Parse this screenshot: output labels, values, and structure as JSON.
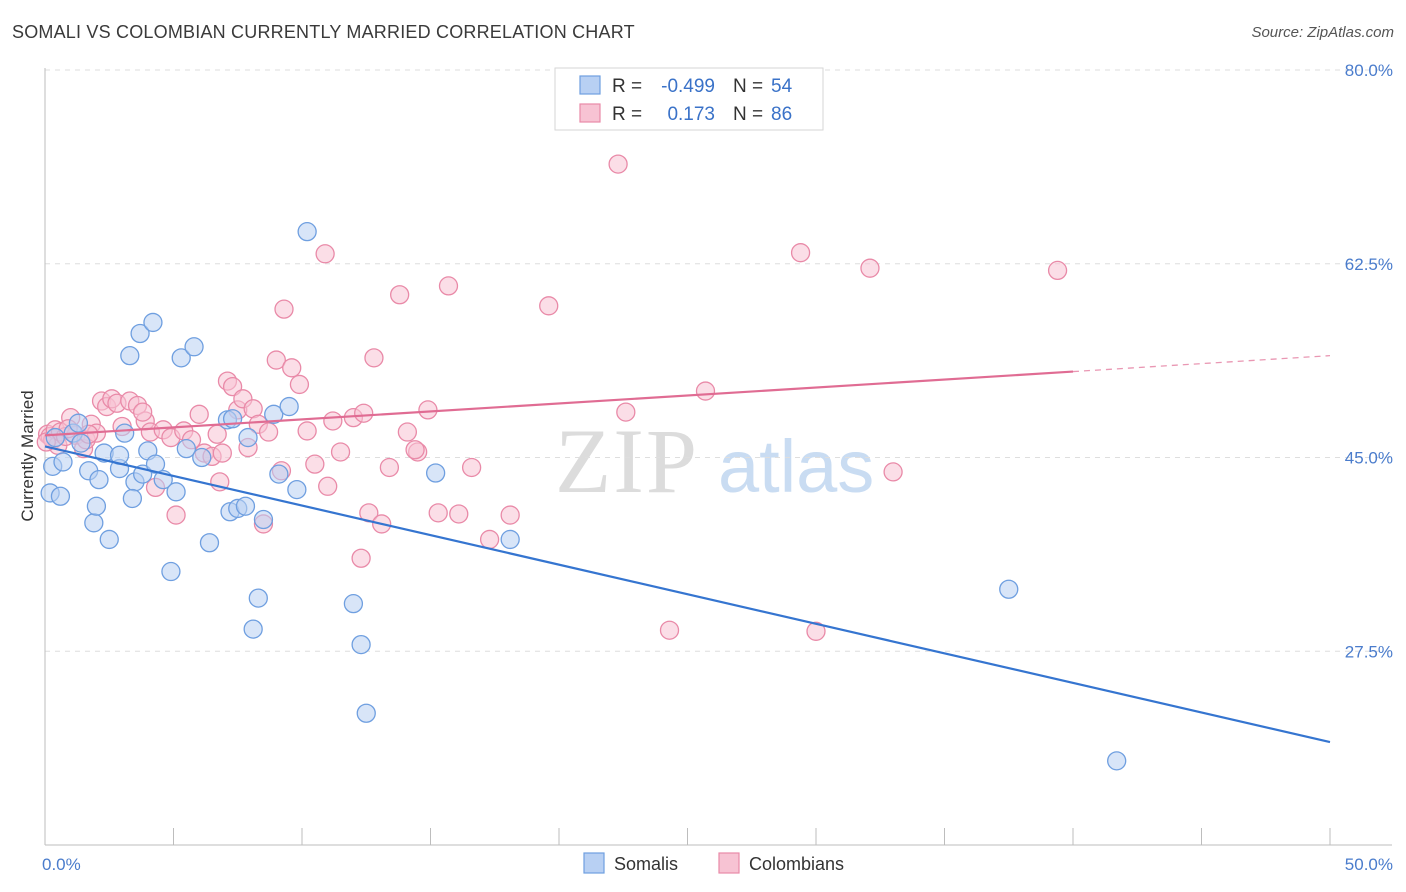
{
  "header": {
    "title": "SOMALI VS COLOMBIAN CURRENTLY MARRIED CORRELATION CHART",
    "source": "Source: ZipAtlas.com"
  },
  "watermark": {
    "zip": "ZIP",
    "atlas": "atlas"
  },
  "chart_data": {
    "type": "scatter",
    "xlabel": "",
    "ylabel": "Currently Married",
    "xlim": [
      0,
      50
    ],
    "ylim": [
      10,
      80
    ],
    "x_tick_labels": [
      "0.0%",
      "50.0%"
    ],
    "y_ticks": [
      27.5,
      45.0,
      62.5,
      80.0
    ],
    "y_tick_labels": [
      "27.5%",
      "45.0%",
      "62.5%",
      "80.0%"
    ],
    "grid": true,
    "legend": {
      "placement": "top-center",
      "entries": [
        {
          "series": "Somalis",
          "r_label": "R =",
          "r_value": "-0.499",
          "n_label": "N =",
          "n_value": "54"
        },
        {
          "series": "Colombians",
          "r_label": "R =",
          "r_value": "0.173",
          "n_label": "N =",
          "n_value": "86"
        }
      ]
    },
    "colors": {
      "somalis_fill": "#b8d0f3",
      "somalis_stroke": "#6f9fe0",
      "somalis_line": "#3575d0",
      "colombians_fill": "#f7c3d3",
      "colombians_stroke": "#e98aa8",
      "colombians_line": "#e06c93"
    },
    "series": [
      {
        "name": "Somalis",
        "trend": {
          "x0": 0,
          "y0": 46.0,
          "x1": 50,
          "y1": 19.3,
          "solid_to": 50
        },
        "points": [
          [
            0.2,
            41.8
          ],
          [
            0.3,
            44.2
          ],
          [
            0.6,
            41.5
          ],
          [
            0.7,
            44.6
          ],
          [
            1.1,
            47.2
          ],
          [
            1.3,
            48.1
          ],
          [
            1.4,
            46.3
          ],
          [
            1.7,
            43.8
          ],
          [
            1.9,
            39.1
          ],
          [
            2.0,
            40.6
          ],
          [
            2.3,
            45.4
          ],
          [
            2.5,
            37.6
          ],
          [
            2.9,
            44.0
          ],
          [
            2.9,
            45.2
          ],
          [
            3.1,
            47.2
          ],
          [
            3.3,
            54.2
          ],
          [
            3.5,
            42.8
          ],
          [
            3.7,
            56.2
          ],
          [
            3.8,
            43.5
          ],
          [
            4.0,
            45.6
          ],
          [
            4.2,
            57.2
          ],
          [
            4.3,
            44.4
          ],
          [
            4.6,
            43.0
          ],
          [
            4.9,
            34.7
          ],
          [
            5.1,
            41.9
          ],
          [
            5.3,
            54.0
          ],
          [
            5.5,
            45.8
          ],
          [
            5.8,
            55.0
          ],
          [
            6.1,
            45.0
          ],
          [
            6.4,
            37.3
          ],
          [
            7.1,
            48.4
          ],
          [
            7.2,
            40.1
          ],
          [
            7.3,
            48.5
          ],
          [
            7.5,
            40.4
          ],
          [
            7.8,
            40.6
          ],
          [
            7.9,
            46.8
          ],
          [
            8.1,
            29.5
          ],
          [
            8.3,
            32.3
          ],
          [
            8.5,
            39.4
          ],
          [
            8.9,
            48.9
          ],
          [
            9.1,
            43.5
          ],
          [
            9.5,
            49.6
          ],
          [
            9.8,
            42.1
          ],
          [
            10.2,
            65.4
          ],
          [
            12.0,
            31.8
          ],
          [
            12.3,
            28.1
          ],
          [
            12.5,
            21.9
          ],
          [
            15.2,
            43.6
          ],
          [
            18.1,
            37.6
          ],
          [
            37.5,
            33.1
          ],
          [
            41.7,
            17.6
          ],
          [
            0.4,
            46.8
          ],
          [
            2.1,
            43.0
          ],
          [
            3.4,
            41.3
          ]
        ]
      },
      {
        "name": "Colombians",
        "trend": {
          "x0": 0,
          "y0": 47.0,
          "x1": 50,
          "y1": 54.2,
          "solid_to": 40
        },
        "points": [
          [
            0.1,
            47.1
          ],
          [
            0.2,
            46.9
          ],
          [
            0.3,
            46.6
          ],
          [
            0.4,
            47.5
          ],
          [
            0.5,
            46.1
          ],
          [
            0.6,
            47.3
          ],
          [
            0.8,
            46.9
          ],
          [
            1.0,
            48.6
          ],
          [
            1.2,
            47.0
          ],
          [
            1.5,
            45.8
          ],
          [
            1.6,
            46.6
          ],
          [
            1.8,
            48.0
          ],
          [
            2.0,
            47.2
          ],
          [
            2.2,
            50.1
          ],
          [
            2.4,
            49.6
          ],
          [
            2.6,
            50.3
          ],
          [
            2.8,
            49.9
          ],
          [
            3.0,
            47.8
          ],
          [
            3.3,
            50.1
          ],
          [
            3.6,
            49.7
          ],
          [
            3.9,
            48.3
          ],
          [
            4.1,
            47.3
          ],
          [
            4.3,
            42.3
          ],
          [
            4.6,
            47.5
          ],
          [
            4.9,
            46.8
          ],
          [
            5.1,
            39.8
          ],
          [
            5.4,
            47.4
          ],
          [
            5.7,
            46.6
          ],
          [
            6.0,
            48.9
          ],
          [
            6.2,
            45.4
          ],
          [
            6.5,
            45.1
          ],
          [
            6.7,
            47.1
          ],
          [
            6.9,
            45.4
          ],
          [
            7.1,
            51.9
          ],
          [
            7.3,
            51.4
          ],
          [
            7.5,
            49.3
          ],
          [
            7.7,
            50.3
          ],
          [
            7.9,
            45.9
          ],
          [
            8.1,
            49.4
          ],
          [
            8.3,
            48.0
          ],
          [
            8.5,
            39.0
          ],
          [
            8.7,
            47.3
          ],
          [
            9.0,
            53.8
          ],
          [
            9.3,
            58.4
          ],
          [
            9.6,
            53.1
          ],
          [
            9.9,
            51.6
          ],
          [
            10.2,
            47.4
          ],
          [
            10.5,
            44.4
          ],
          [
            10.9,
            63.4
          ],
          [
            11.2,
            48.3
          ],
          [
            11.5,
            45.5
          ],
          [
            12.0,
            48.6
          ],
          [
            12.3,
            35.9
          ],
          [
            12.6,
            40.0
          ],
          [
            12.8,
            54.0
          ],
          [
            13.1,
            39.0
          ],
          [
            13.4,
            44.1
          ],
          [
            13.8,
            59.7
          ],
          [
            14.1,
            47.3
          ],
          [
            14.5,
            45.5
          ],
          [
            14.9,
            49.3
          ],
          [
            15.3,
            40.0
          ],
          [
            15.7,
            60.5
          ],
          [
            16.1,
            39.9
          ],
          [
            16.6,
            44.1
          ],
          [
            17.3,
            37.6
          ],
          [
            18.1,
            39.8
          ],
          [
            19.6,
            58.7
          ],
          [
            22.3,
            71.5
          ],
          [
            22.6,
            49.1
          ],
          [
            24.3,
            29.4
          ],
          [
            25.7,
            51.0
          ],
          [
            29.4,
            63.5
          ],
          [
            30.0,
            29.3
          ],
          [
            32.1,
            62.1
          ],
          [
            33.0,
            43.7
          ],
          [
            39.4,
            61.9
          ],
          [
            11.0,
            42.4
          ],
          [
            6.8,
            42.8
          ],
          [
            1.7,
            47.1
          ],
          [
            3.8,
            49.1
          ],
          [
            9.2,
            43.8
          ],
          [
            12.4,
            49.0
          ],
          [
            14.4,
            45.7
          ],
          [
            0.9,
            47.6
          ],
          [
            0.05,
            46.4
          ]
        ]
      }
    ]
  },
  "bottom_legend": {
    "somalis": "Somalis",
    "colombians": "Colombians"
  }
}
